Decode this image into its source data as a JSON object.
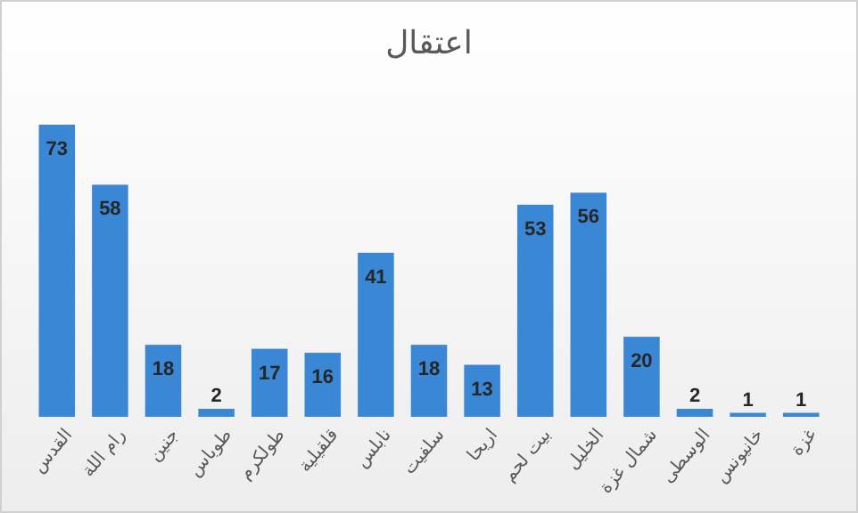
{
  "chart_data": {
    "type": "bar",
    "title": "اعتقال",
    "categories": [
      "القدس",
      "رام اللة",
      "جنين",
      "طوباس",
      "طولكرم",
      "قلقيلية",
      "نابلس",
      "سلفيت",
      "اريحا",
      "بيت لحم",
      "الخليل",
      "شمال غزة",
      "الوسطى",
      "خانيونس",
      "غزة"
    ],
    "values": [
      73,
      58,
      18,
      2,
      17,
      16,
      41,
      18,
      13,
      53,
      56,
      20,
      2,
      1,
      1
    ],
    "color": "#3a87d6",
    "data_labels": true
  }
}
